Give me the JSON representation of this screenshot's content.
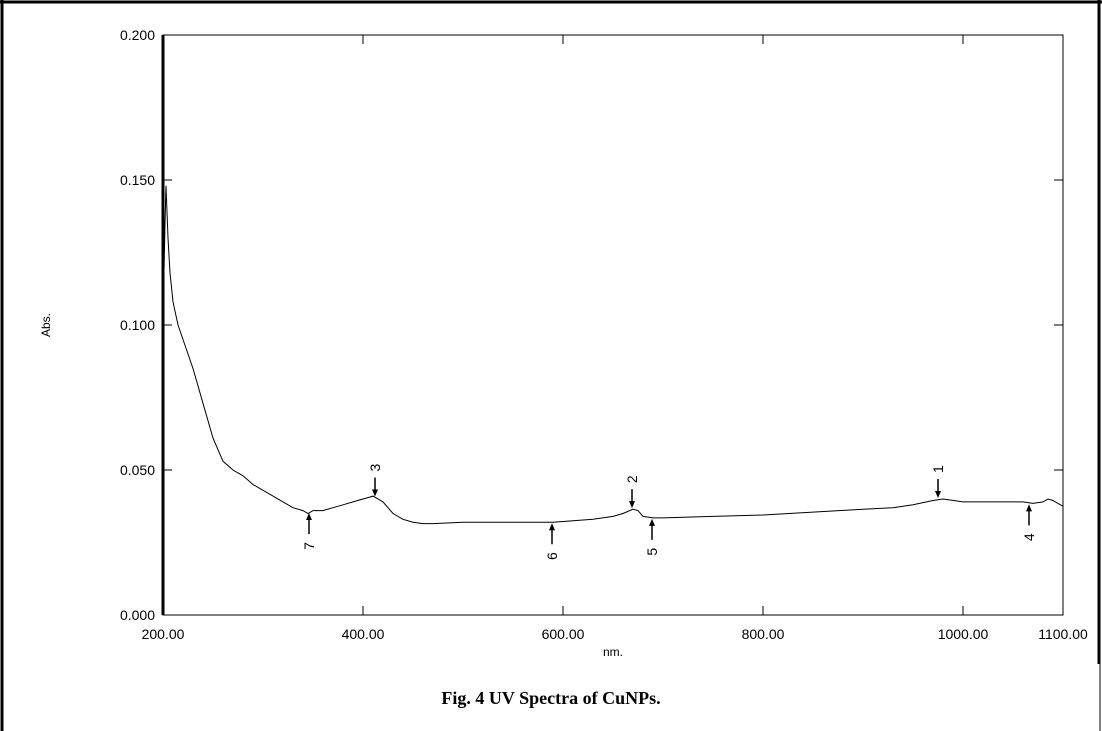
{
  "figure": {
    "caption": "Fig. 4 UV Spectra of CuNPs."
  },
  "chart_data": {
    "type": "line",
    "xlabel": "nm.",
    "ylabel": "Abs.",
    "xlim": [
      200,
      1100
    ],
    "ylim": [
      0,
      0.2
    ],
    "x_ticks": [
      "200.00",
      "400.00",
      "600.00",
      "800.00",
      "1000.00",
      "1100.00"
    ],
    "x_tick_values": [
      200,
      400,
      600,
      800,
      1000,
      1100
    ],
    "y_ticks": [
      "0.000",
      "0.050",
      "0.100",
      "0.150",
      "0.200"
    ],
    "y_tick_values": [
      0,
      0.05,
      0.1,
      0.15,
      0.2
    ],
    "grid": false,
    "series": [
      {
        "x": [
          200,
          202,
          203,
          205,
          207,
          210,
          215,
          220,
          230,
          240,
          250,
          260,
          270,
          280,
          290,
          300,
          310,
          320,
          330,
          340,
          345,
          350,
          360,
          370,
          380,
          390,
          400,
          405,
          410,
          420,
          430,
          440,
          450,
          460,
          470,
          500,
          530,
          560,
          590,
          610,
          630,
          650,
          660,
          670,
          675,
          680,
          690,
          700,
          750,
          800,
          850,
          900,
          930,
          950,
          970,
          980,
          1000,
          1020,
          1040,
          1060,
          1070,
          1080,
          1085,
          1090,
          1095,
          1100
        ],
        "y": [
          0.102,
          0.135,
          0.148,
          0.13,
          0.118,
          0.108,
          0.1,
          0.095,
          0.085,
          0.073,
          0.061,
          0.053,
          0.05,
          0.048,
          0.045,
          0.043,
          0.041,
          0.039,
          0.037,
          0.036,
          0.035,
          0.036,
          0.036,
          0.037,
          0.038,
          0.039,
          0.04,
          0.0405,
          0.041,
          0.039,
          0.035,
          0.033,
          0.032,
          0.0315,
          0.0315,
          0.032,
          0.032,
          0.032,
          0.032,
          0.0325,
          0.033,
          0.034,
          0.035,
          0.0365,
          0.036,
          0.034,
          0.0335,
          0.0335,
          0.034,
          0.0345,
          0.0355,
          0.0365,
          0.037,
          0.038,
          0.0395,
          0.04,
          0.039,
          0.039,
          0.039,
          0.039,
          0.0385,
          0.039,
          0.04,
          0.0395,
          0.0385,
          0.0375
        ]
      }
    ],
    "peaks": [
      {
        "label": "1",
        "x": 975,
        "y": 0.04,
        "direction": "max"
      },
      {
        "label": "2",
        "x": 669,
        "y": 0.0365,
        "direction": "max"
      },
      {
        "label": "3",
        "x": 412,
        "y": 0.0405,
        "direction": "max"
      },
      {
        "label": "4",
        "x": 1066,
        "y": 0.0385,
        "direction": "min"
      },
      {
        "label": "5",
        "x": 689,
        "y": 0.0335,
        "direction": "min"
      },
      {
        "label": "6",
        "x": 589,
        "y": 0.032,
        "direction": "min"
      },
      {
        "label": "7",
        "x": 346,
        "y": 0.0355,
        "direction": "min"
      }
    ],
    "colors": {
      "line": "#000000",
      "axes": "#000000"
    }
  }
}
